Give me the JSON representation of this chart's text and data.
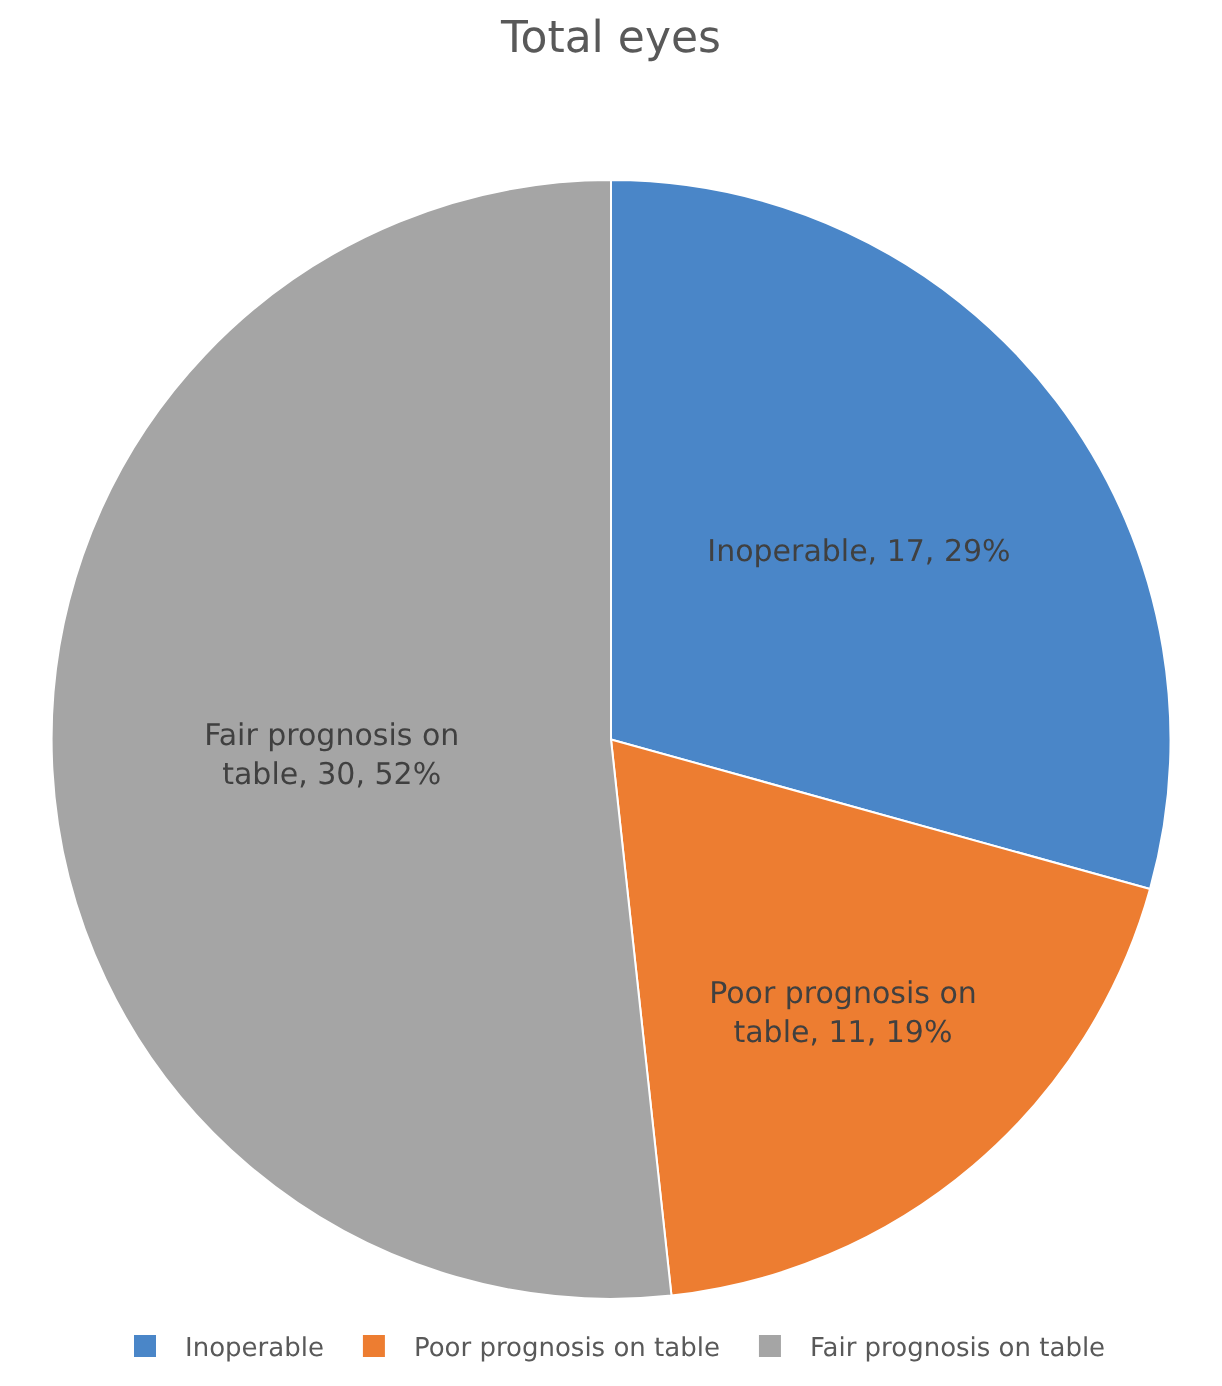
{
  "chart_data": {
    "type": "pie",
    "title": "Total eyes",
    "categories": [
      "Inoperable",
      "Poor prognosis on table",
      "Fair prognosis on table"
    ],
    "values": [
      17,
      11,
      30
    ],
    "colors": [
      "#4a86c8",
      "#ed7d31",
      "#a5a5a5"
    ],
    "value_labels": [
      "Inoperable, 17, 29%",
      "Poor prognosis on table, 11, 19%",
      "Fair prognosis on table, 30, 52%"
    ],
    "legend": "bottom"
  }
}
